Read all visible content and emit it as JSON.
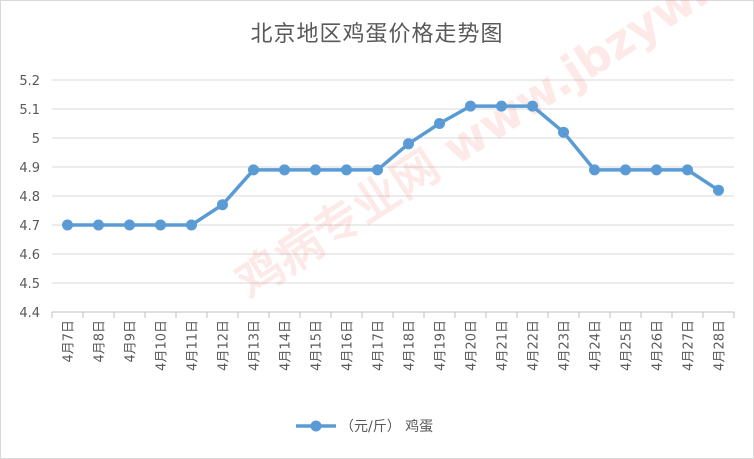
{
  "chart_data": {
    "type": "line",
    "title": "北京地区鸡蛋价格走势图",
    "categories": [
      "4月7日",
      "4月8日",
      "4月9日",
      "4月10日",
      "4月11日",
      "4月12日",
      "4月13日",
      "4月14日",
      "4月15日",
      "4月16日",
      "4月17日",
      "4月18日",
      "4月19日",
      "4月20日",
      "4月21日",
      "4月22日",
      "4月23日",
      "4月24日",
      "4月25日",
      "4月26日",
      "4月27日",
      "4月28日"
    ],
    "series": [
      {
        "name": "（元/斤） 鸡蛋",
        "color": "#5b9bd5",
        "values": [
          4.7,
          4.7,
          4.7,
          4.7,
          4.7,
          4.77,
          4.89,
          4.89,
          4.89,
          4.89,
          4.89,
          4.98,
          5.05,
          5.11,
          5.11,
          5.11,
          5.02,
          4.89,
          4.89,
          4.89,
          4.89,
          4.82
        ]
      }
    ],
    "ylim": [
      4.4,
      5.2
    ],
    "yticks": [
      "4.4",
      "4.5",
      "4.6",
      "4.7",
      "4.8",
      "4.9",
      "5",
      "5.1",
      "5.2"
    ],
    "grid": true,
    "legend": "bottom",
    "watermark": "鸡病专业网 www.jbzyw.com"
  }
}
